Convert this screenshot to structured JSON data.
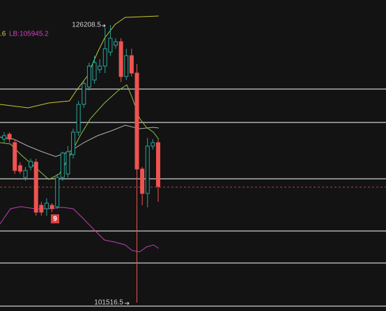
{
  "chart_data": {
    "type": "candlestick",
    "ylim": [
      100774,
      128436
    ],
    "open": [
      116059,
      116492,
      115750,
      113707,
      112655,
      113584,
      114017,
      110180,
      109870,
      110180,
      110056,
      112655,
      112965,
      114698,
      116678,
      119153,
      120700,
      121319,
      122247,
      122557,
      123795,
      124413,
      124723,
      121629,
      123485,
      121938,
      113398,
      111232,
      115440,
      115750
    ],
    "high": [
      116678,
      116678,
      116059,
      114017,
      113584,
      114326,
      114326,
      110489,
      110799,
      110365,
      112965,
      114945,
      115440,
      116987,
      119463,
      121319,
      122866,
      123485,
      123176,
      125961,
      126208.5,
      125032,
      125032,
      124104,
      124104,
      122743,
      113584,
      116183,
      116059,
      116059
    ],
    "low": [
      115750,
      115750,
      112965,
      112965,
      112346,
      113274,
      109252,
      109252,
      109252,
      109561,
      109870,
      112346,
      112655,
      114326,
      116368,
      118844,
      120391,
      121010,
      121938,
      121938,
      123485,
      124104,
      121134,
      121319,
      121629,
      101516.5,
      110180,
      109994,
      115131,
      110489
    ],
    "close": [
      116368,
      116059,
      113274,
      113212,
      113274,
      114079,
      109561,
      109561,
      110365,
      109870,
      112655,
      114821,
      114945,
      116678,
      119153,
      121010,
      122557,
      122866,
      122557,
      124104,
      125032,
      124723,
      121629,
      123485,
      121938,
      113398,
      111232,
      115440,
      115750,
      111851
    ],
    "up_color": "#26a69a",
    "down_color": "#ef5350",
    "lines": [
      {
        "color": "#c8c832",
        "x": [
          -0.8,
          4.5,
          8.4,
          12.3,
          13.6,
          15.6,
          17.6,
          18.9,
          20.9,
          22.8,
          29.1
        ],
        "values": [
          119153,
          118844,
          119277,
          119463,
          120391,
          121629,
          123795,
          125032,
          126270,
          126889,
          127013
        ]
      },
      {
        "color": "#c040b0",
        "x": [
          -0.8,
          1.2,
          3.1,
          5.8,
          8.4,
          11.0,
          13.0,
          15.0,
          16.9,
          18.9,
          20.9,
          22.8,
          24.1,
          25.5,
          26.8,
          28.1,
          29.1
        ],
        "values": [
          108509,
          109870,
          110056,
          109870,
          109870,
          109994,
          109870,
          108942,
          108014,
          107086,
          106900,
          106652,
          106157,
          106034,
          106467,
          106652,
          106343
        ]
      },
      {
        "color": "#b0b0b0",
        "x": [
          -0.8,
          1.8,
          4.5,
          7.1,
          9.7,
          12.3,
          15.0,
          17.6,
          20.2,
          22.8,
          25.5,
          28.1,
          29.1
        ],
        "values": [
          116245,
          116059,
          115440,
          114945,
          114512,
          114945,
          115750,
          116368,
          116802,
          117297,
          116987,
          117111,
          117049
        ]
      },
      {
        "color": "#8cc040",
        "x": [
          -0.8,
          1.2,
          3.1,
          5.8,
          8.4,
          10.4,
          12.3,
          14.3,
          16.3,
          18.9,
          21.5,
          23.1,
          24.1,
          25.5,
          26.8,
          28.1,
          29.1
        ],
        "values": [
          115750,
          115626,
          114698,
          113584,
          112470,
          112965,
          114512,
          116368,
          117916,
          119277,
          120391,
          120886,
          119772,
          117916,
          117111,
          116678,
          116059
        ]
      }
    ],
    "levels": [
      120515,
      117544,
      112532,
      107890,
      105044,
      101207
    ],
    "level_color": "#cfcfcf",
    "current_price": 111789,
    "current_color": "#ef5350",
    "high_label": "126208.5",
    "low_label": "101516.5",
    "lb_label": "LB:105945.2",
    "ub_label": ".6",
    "count_label": "9"
  }
}
